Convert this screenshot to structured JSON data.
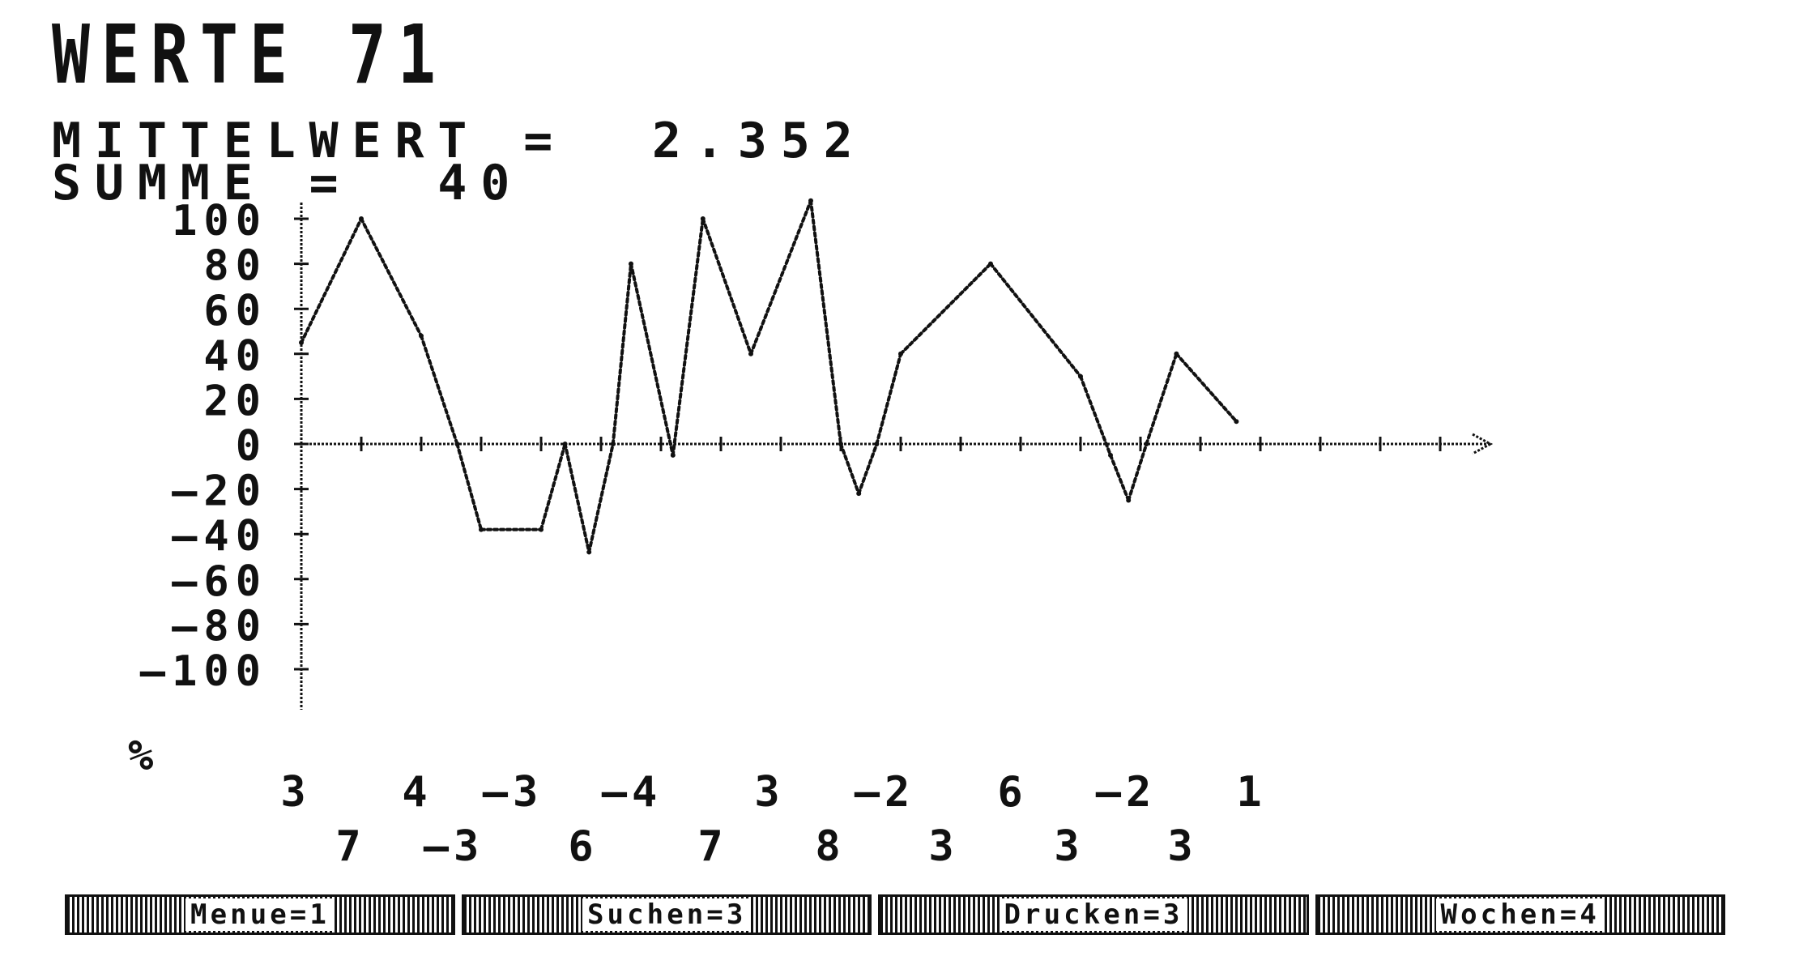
{
  "header": {
    "title": "WERTE 71",
    "mean_line": "MITTELWERT =  2.352",
    "sum_line": "SUMME =  40"
  },
  "menu": [
    {
      "label": "Menue=1"
    },
    {
      "label": "Suchen=3"
    },
    {
      "label": "Drucken=3"
    },
    {
      "label": "Wochen=4"
    }
  ],
  "chart_data": {
    "type": "line",
    "title": "WERTE 71",
    "xlabel": "",
    "ylabel": "%",
    "ylim": [
      -100,
      100
    ],
    "yticks": [
      100,
      80,
      60,
      40,
      20,
      0,
      -20,
      -40,
      -60,
      -80,
      -100
    ],
    "grid": false,
    "x_value_labels_top": [
      "3",
      "4",
      "-3",
      "-4",
      "3",
      "-2",
      "6",
      "-2",
      "1"
    ],
    "x_value_labels_bottom": [
      "7",
      "-3",
      "6",
      "7",
      "8",
      "3",
      "3",
      "3"
    ],
    "series": [
      {
        "values": [
          45,
          100,
          48,
          0,
          -38,
          -38,
          0,
          -48,
          0,
          80,
          -5,
          100,
          40,
          108,
          0,
          -22,
          0,
          40,
          80,
          30,
          -5,
          -25,
          0,
          40,
          10
        ],
        "x_index": [
          0,
          1,
          2,
          2.6,
          3,
          4,
          4.4,
          4.8,
          5.2,
          5.5,
          6.2,
          6.7,
          7.5,
          8.5,
          9.0,
          9.3,
          9.6,
          10.0,
          11.5,
          13.0,
          13.5,
          13.8,
          14.1,
          14.6,
          15.6
        ]
      }
    ],
    "colors": {
      "line": "#111111",
      "axis": "#111111"
    }
  }
}
